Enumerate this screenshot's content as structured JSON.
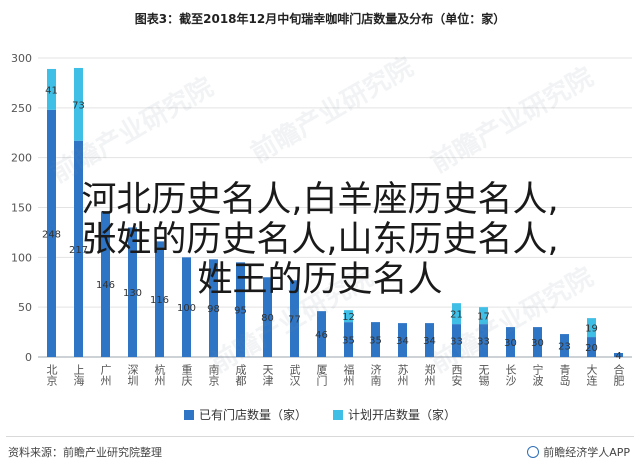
{
  "title": "图表3：截至2018年12月中旬瑞幸咖啡门店数量及分布（单位：家）",
  "chart_data": {
    "type": "bar",
    "categories": [
      "北京",
      "上海",
      "广州",
      "深圳",
      "杭州",
      "重庆",
      "南京",
      "成都",
      "天津",
      "武汉",
      "厦门",
      "福州",
      "济南",
      "苏州",
      "郑州",
      "西安",
      "无锡",
      "长沙",
      "宁波",
      "青岛",
      "大连",
      "合肥"
    ],
    "series": [
      {
        "name": "已有门店数量（家）",
        "values": [
          248,
          217,
          146,
          130,
          116,
          100,
          98,
          95,
          80,
          77,
          46,
          35,
          35,
          34,
          34,
          33,
          33,
          30,
          30,
          23,
          20,
          4
        ],
        "color": "#2e75c5"
      },
      {
        "name": "计划开店数量（家）",
        "values": [
          41,
          73,
          0,
          0,
          0,
          0,
          0,
          0,
          0,
          0,
          0,
          12,
          0,
          0,
          0,
          21,
          17,
          0,
          0,
          0,
          19,
          0
        ],
        "color": "#3fbfe6"
      }
    ],
    "ylim": [
      0,
      300
    ],
    "yticks": [
      0,
      50,
      100,
      150,
      200,
      250,
      300
    ],
    "grid": true,
    "legend": "bottom"
  },
  "legend": {
    "existing": "已有门店数量（家）",
    "planned": "计划开店数量（家）",
    "existing_color": "#2e75c5",
    "planned_color": "#3fbfe6"
  },
  "source": "资料来源：前瞻产业研究院整理",
  "brand": "前瞻经济学人APP",
  "overlay_lines": [
    "河北历史名人,白羊座历史名人,",
    "张姓的历史名人,山东历史名人,",
    "姓王的历史名人"
  ],
  "watermark": "前瞻产业研究院"
}
